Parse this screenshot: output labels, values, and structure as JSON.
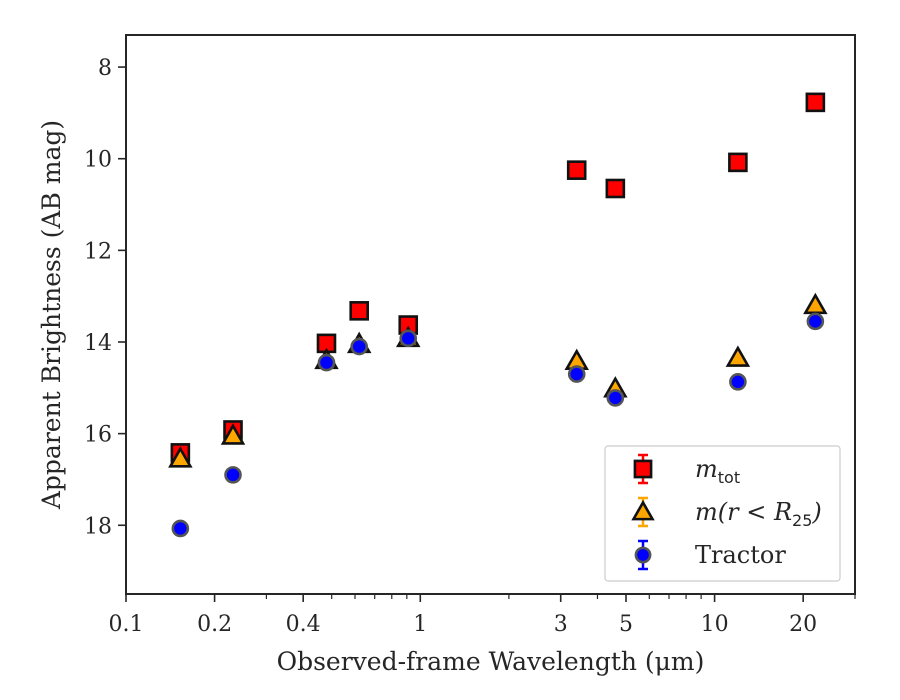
{
  "chart_data": {
    "type": "scatter",
    "xlabel": "Observed-frame Wavelength (μm)",
    "ylabel": "Apparent Brightness (AB mag)",
    "xscale": "log",
    "xlim": [
      0.1,
      30
    ],
    "ylim": [
      19.5,
      7.3
    ],
    "y_inverted": true,
    "x_ticks": [
      {
        "value": 0.1,
        "label": "0.1"
      },
      {
        "value": 0.2,
        "label": "0.2"
      },
      {
        "value": 0.4,
        "label": "0.4"
      },
      {
        "value": 1,
        "label": "1"
      },
      {
        "value": 3,
        "label": "3"
      },
      {
        "value": 5,
        "label": "5"
      },
      {
        "value": 10,
        "label": "10"
      },
      {
        "value": 20,
        "label": "20"
      }
    ],
    "y_ticks": [
      {
        "value": 8,
        "label": "8"
      },
      {
        "value": 10,
        "label": "10"
      },
      {
        "value": 12,
        "label": "12"
      },
      {
        "value": 14,
        "label": "14"
      },
      {
        "value": 16,
        "label": "16"
      },
      {
        "value": 18,
        "label": "18"
      }
    ],
    "grid": false,
    "legend_position": "bottom-right",
    "series": [
      {
        "name": "m_tot",
        "marker": "square",
        "color": "#ff0000",
        "points": [
          {
            "x": 0.153,
            "y": 16.42
          },
          {
            "x": 0.231,
            "y": 15.92
          },
          {
            "x": 0.48,
            "y": 14.03
          },
          {
            "x": 0.62,
            "y": 13.32
          },
          {
            "x": 0.91,
            "y": 13.63
          },
          {
            "x": 3.4,
            "y": 10.25
          },
          {
            "x": 4.6,
            "y": 10.65
          },
          {
            "x": 12.0,
            "y": 10.08
          },
          {
            "x": 22.0,
            "y": 8.77
          }
        ]
      },
      {
        "name": "m(r < R25)",
        "marker": "triangle",
        "color": "#ffa500",
        "points": [
          {
            "x": 0.153,
            "y": 16.55
          },
          {
            "x": 0.231,
            "y": 16.05
          },
          {
            "x": 0.48,
            "y": 14.4
          },
          {
            "x": 0.62,
            "y": 14.05
          },
          {
            "x": 0.91,
            "y": 13.92
          },
          {
            "x": 3.4,
            "y": 14.42
          },
          {
            "x": 4.6,
            "y": 15.02
          },
          {
            "x": 12.0,
            "y": 14.35
          },
          {
            "x": 22.0,
            "y": 13.2
          }
        ]
      },
      {
        "name": "Tractor",
        "marker": "circle",
        "color": "#0000ff",
        "points": [
          {
            "x": 0.153,
            "y": 18.07
          },
          {
            "x": 0.231,
            "y": 16.9
          },
          {
            "x": 0.48,
            "y": 14.45
          },
          {
            "x": 0.62,
            "y": 14.1
          },
          {
            "x": 0.91,
            "y": 13.92
          },
          {
            "x": 3.4,
            "y": 14.7
          },
          {
            "x": 4.6,
            "y": 15.22
          },
          {
            "x": 12.0,
            "y": 14.87
          },
          {
            "x": 22.0,
            "y": 13.55
          }
        ]
      }
    ],
    "legend": [
      {
        "marker": "square",
        "color": "#ff0000",
        "base": "m",
        "sub": "tot",
        "suffix": ""
      },
      {
        "marker": "triangle",
        "color": "#ffa500",
        "base": "m(r < R",
        "sub": "25",
        "suffix": ")"
      },
      {
        "marker": "circle",
        "color": "#0000ff",
        "base": "Tractor",
        "sub": "",
        "suffix": ""
      }
    ]
  }
}
